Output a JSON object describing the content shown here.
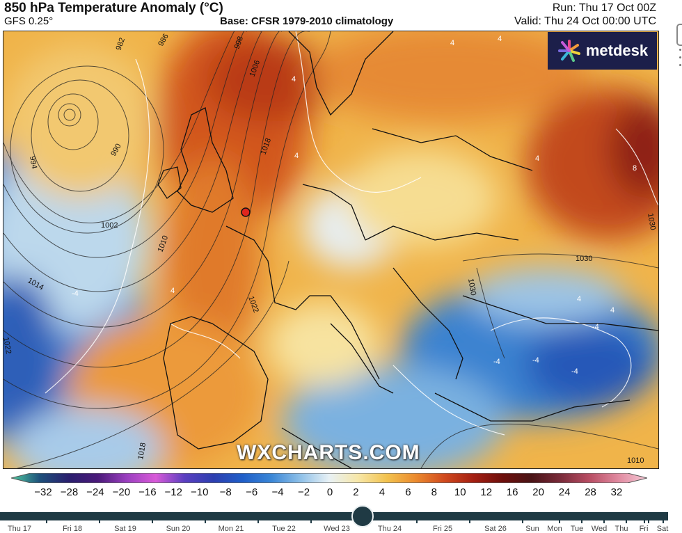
{
  "header": {
    "title": "850 hPa Temperature Anomaly (°C)",
    "model": "GFS 0.25°",
    "base": "Base: CFSR 1979-2010 climatology",
    "run": "Run: Thu 17 Oct 00Z",
    "valid": "Valid: Thu 24 Oct 00:00 UTC"
  },
  "logo": {
    "text": "metdesk",
    "icon": "star-burst-icon"
  },
  "watermark": "WXCHARTS.COM",
  "map": {
    "isobar_labels": [
      "982",
      "986",
      "990",
      "994",
      "998",
      "1002",
      "1006",
      "1010",
      "1014",
      "1018",
      "1022",
      "1030",
      "1030",
      "1030",
      "1018",
      "1010",
      "1022"
    ],
    "anomaly_labels": [
      "4",
      "4",
      "4",
      "-4",
      "8",
      "4",
      "4",
      "-4",
      "-4",
      "-4",
      "-4",
      "4",
      "4",
      "4"
    ],
    "marker": "location-marker"
  },
  "colorbar": {
    "ticks": [
      "−32",
      "−28",
      "−24",
      "−20",
      "−16",
      "−12",
      "−10",
      "−8",
      "−6",
      "−4",
      "−2",
      "0",
      "2",
      "4",
      "6",
      "8",
      "10",
      "12",
      "16",
      "20",
      "24",
      "28",
      "32"
    ],
    "colors": [
      "#4fc9a0",
      "#1d4f7a",
      "#2a1f6e",
      "#4b1a7a",
      "#9a3fbf",
      "#d85ad8",
      "#5a3fc0",
      "#2d3fb0",
      "#1f5ec8",
      "#3a86d6",
      "#8ec0e8",
      "#e8f1f5",
      "#f7e7a8",
      "#f2c24e",
      "#eb8a2e",
      "#d0491e",
      "#a41f12",
      "#6e0f0c",
      "#4a1416",
      "#7a2b3a",
      "#b84d63",
      "#e08aa0",
      "#f6c9d6"
    ]
  },
  "timeline": {
    "days": [
      "Thu 17",
      "Fri 18",
      "Sat 19",
      "Sun 20",
      "Mon 21",
      "Tue 22",
      "Wed 23",
      "Thu 24",
      "Fri 25",
      "Sat 26",
      "Sun",
      "Mon",
      "Tue",
      "Wed",
      "Thu",
      "Fri",
      "Sat"
    ],
    "selected": "Thu 24"
  }
}
